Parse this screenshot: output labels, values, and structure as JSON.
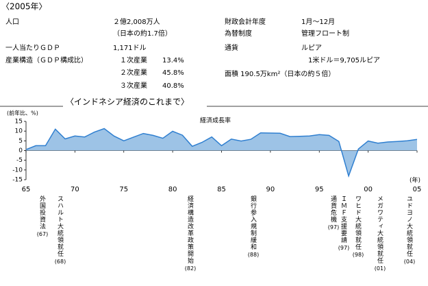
{
  "header": "〈2005年〉",
  "profile": [
    "人口",
    "２億2,008万人",
    "（日本の約1.7倍）",
    "一人当たりＧＤＰ",
    "1,171ドル",
    "産業構造（ＧＤＰ構成比）",
    "１次産業",
    "13.4%",
    "２次産業",
    "45.8%",
    "３次産業",
    "40.8%",
    "財政会計年度",
    "1月～12月",
    "為替制度",
    "管理フロート制",
    "通貨",
    "ルピア",
    "1米ドル＝9,705ルピア",
    "面積 190.5万km²（日本の約５倍）"
  ],
  "chart_data": {
    "type": "area",
    "title": "〈インドネシア経済のこれまで〉",
    "y_label": "(前年比、%)",
    "x_label": "(年)",
    "series_name": "経済成長率",
    "color": "#9dc3e6",
    "line_color": "#2f7fd0",
    "categories": [
      "65",
      null,
      null,
      null,
      null,
      "70",
      null,
      null,
      null,
      null,
      "75",
      null,
      null,
      null,
      null,
      "80",
      null,
      null,
      null,
      null,
      "85",
      null,
      null,
      null,
      null,
      "90",
      null,
      null,
      null,
      null,
      "95",
      null,
      null,
      null,
      null,
      "00",
      null,
      null,
      null,
      null,
      "05"
    ],
    "values": [
      0.5,
      2.5,
      2.5,
      11,
      6,
      7.5,
      7,
      9.5,
      11.3,
      7.5,
      5,
      6.9,
      8.8,
      7.8,
      6.3,
      9.9,
      7.9,
      2.2,
      4.2,
      7,
      2.5,
      5.9,
      4.9,
      5.8,
      9.1,
      9,
      8.9,
      7.2,
      7.3,
      7.5,
      8.2,
      7.8,
      4.7,
      -13.1,
      0.8,
      4.9,
      3.8,
      4.4,
      4.7,
      5,
      5.7
    ],
    "ylim": [
      -15,
      15
    ],
    "yticks": [
      15,
      10,
      5,
      0,
      -5,
      -10,
      -15
    ],
    "annotations": [
      {
        "text": "外国投資法",
        "year": "(67)"
      },
      {
        "text": "スハルト大統領就任",
        "year": "(68)"
      },
      {
        "text": "経済構造改革政策開始",
        "year": "(82)"
      },
      {
        "text": "銀行参入規制緩和",
        "year": "(88)"
      },
      {
        "text": "通貨危機",
        "year": "(97)"
      },
      {
        "text": "ＩＭＦ支援要請",
        "year": "(97)"
      },
      {
        "text": "ワヒド大統領就任",
        "year": "(98)"
      },
      {
        "text": "メガワティ大統領就任",
        "year": "(01)"
      },
      {
        "text": "ユドヨノ大統領就任",
        "year": "(04)"
      }
    ]
  }
}
